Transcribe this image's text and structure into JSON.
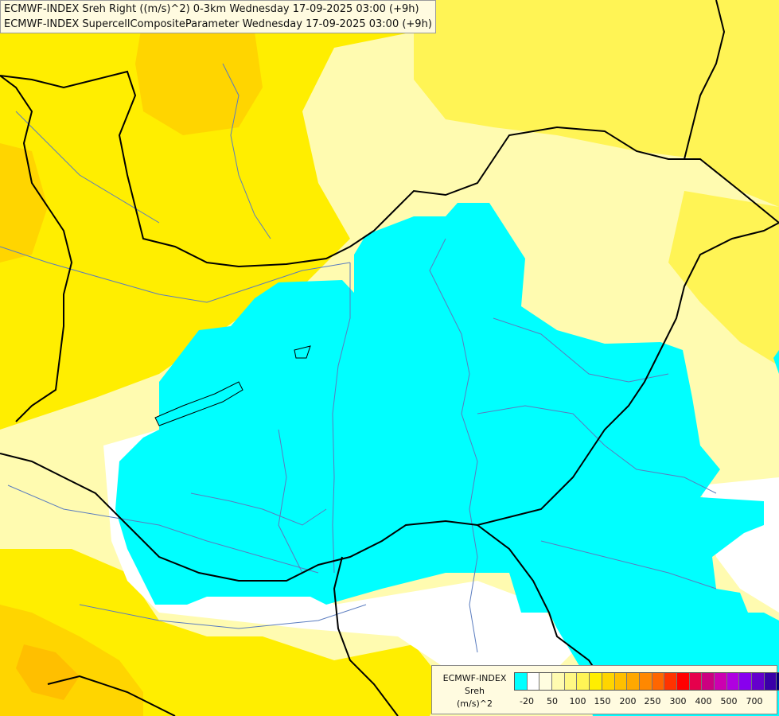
{
  "header": {
    "line1": "ECMWF-INDEX Sreh Right ((m/s)^2) 0-3km Wednesday 17-09-2025 03:00 (+9h)",
    "line2": "ECMWF-INDEX SupercellCompositeParameter Wednesday 17-09-2025 03:00 (+9h)"
  },
  "legend": {
    "title_line1": "ECMWF-INDEX",
    "title_line2": "Sreh",
    "title_line3": "(m/s)^2",
    "colors": [
      "#00ffff",
      "#ffffff",
      "#fffde0",
      "#fffbb0",
      "#fff884",
      "#fff455",
      "#ffee00",
      "#ffd500",
      "#ffbf00",
      "#ffa800",
      "#ff8800",
      "#ff6600",
      "#ff3300",
      "#ff0000",
      "#e6004c",
      "#cc0080",
      "#cc00b0",
      "#b000e0",
      "#8800ee",
      "#6600cc",
      "#3a00a8",
      "#00007a"
    ],
    "ticks": [
      "-20",
      "50",
      "100",
      "150",
      "200",
      "250",
      "300",
      "400",
      "500",
      "700"
    ]
  },
  "palette": {
    "cyan": "#00ffff",
    "light_yellow": "#fffbb0",
    "yellow": "#ffee00",
    "orange": "#ffd500",
    "dark_orange": "#ffbf00"
  }
}
